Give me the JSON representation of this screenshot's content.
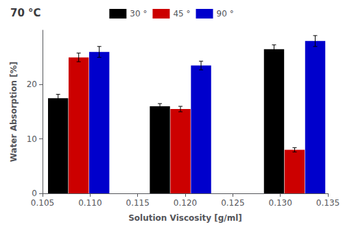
{
  "chart_data": {
    "type": "bar",
    "title": "70 °C",
    "xlabel": "Solution Viscosity [g/ml]",
    "ylabel": "Water Absorption [%]",
    "x": [
      0.1088,
      0.1195,
      0.1315
    ],
    "series": [
      {
        "name": "30 °",
        "color": "#000000",
        "values": [
          17.5,
          16.0,
          26.5
        ],
        "errors": [
          0.7,
          0.5,
          0.8
        ]
      },
      {
        "name": "45 °",
        "color": "#cc0000",
        "values": [
          25.0,
          15.5,
          8.0
        ],
        "errors": [
          0.8,
          0.5,
          0.4
        ]
      },
      {
        "name": "90 °",
        "color": "#0000cc",
        "values": [
          26.0,
          23.5,
          28.0
        ],
        "errors": [
          1.0,
          0.8,
          1.0
        ]
      }
    ],
    "xlim": [
      0.105,
      0.135
    ],
    "xticks": [
      {
        "value": 0.105,
        "label": "0.105"
      },
      {
        "value": 0.11,
        "label": "0.110"
      },
      {
        "value": 0.115,
        "label": "0.115"
      },
      {
        "value": 0.12,
        "label": "0.120"
      },
      {
        "value": 0.125,
        "label": "0.125"
      },
      {
        "value": 0.13,
        "label": "0.130"
      },
      {
        "value": 0.135,
        "label": "0.135"
      }
    ],
    "ylim": [
      0,
      30
    ],
    "yticks": [
      0,
      10,
      20
    ],
    "grid": false,
    "legend": "upper center"
  }
}
